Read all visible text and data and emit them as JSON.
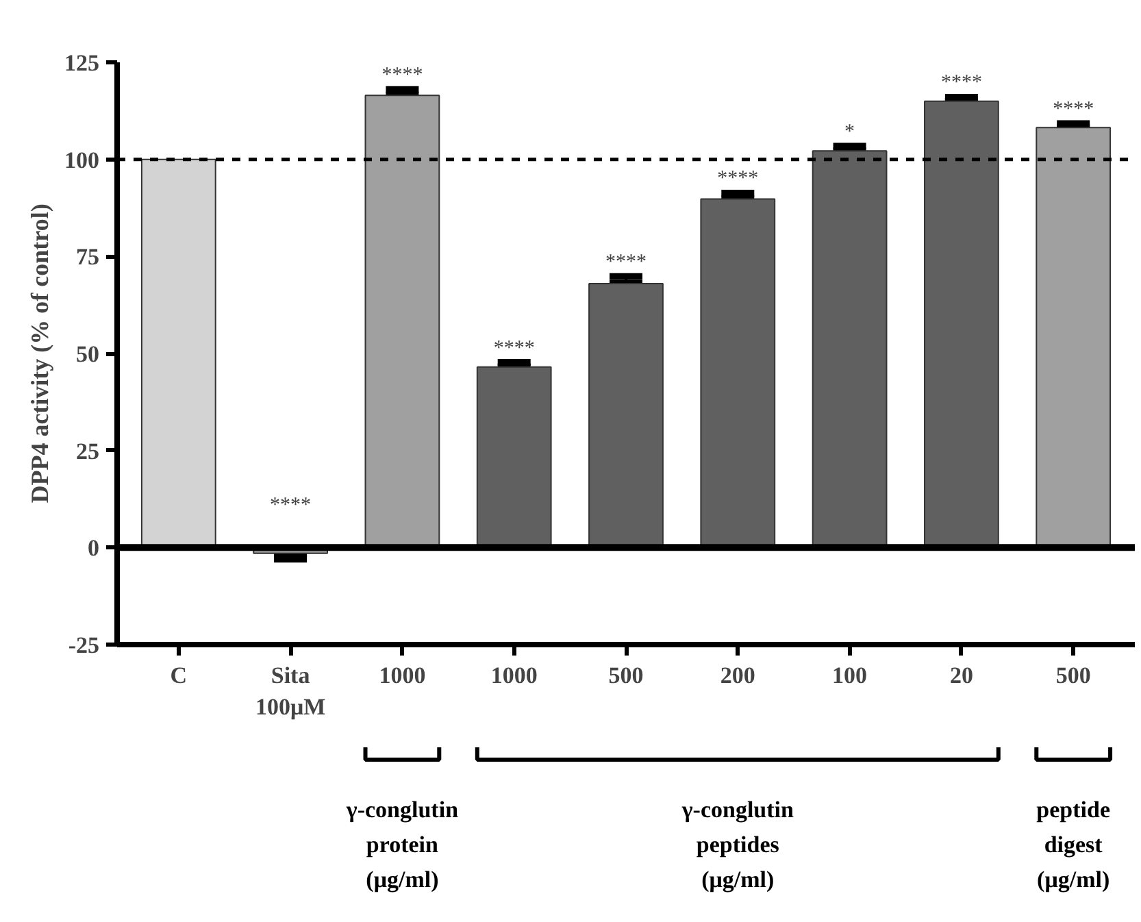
{
  "chart_data": {
    "type": "bar",
    "ylabel": "DPP4 activity (% of control)",
    "categories": [
      "C",
      "Sita\n100μM",
      "1000",
      "1000",
      "500",
      "200",
      "100",
      "20",
      "500"
    ],
    "values": [
      100,
      -1.5,
      116.5,
      46.5,
      68,
      89.8,
      102.2,
      115,
      108.2
    ],
    "errors": [
      null,
      1.5,
      1.5,
      1.2,
      1.8,
      1.5,
      1.2,
      1,
      1
    ],
    "value_labels": [
      null,
      "****",
      "****",
      "****",
      "****",
      "****",
      "*",
      "****",
      "****"
    ],
    "colors": [
      "#d3d3d3",
      "#9a9a9a",
      "#a0a0a0",
      "#606060",
      "#606060",
      "#606060",
      "#606060",
      "#606060",
      "#a0a0a0"
    ],
    "ylim": [
      -25,
      125
    ],
    "yticks": [
      -25,
      0,
      25,
      50,
      75,
      100,
      125
    ],
    "grid": false,
    "ref_lines": [
      {
        "axis": "y",
        "value": 100,
        "line_style": "dashed",
        "color": "#000000"
      },
      {
        "axis": "y",
        "value": 0,
        "line_style": "solid",
        "color": "#000000"
      }
    ],
    "annotations": [
      "γ-conglutin\nprotein\n(μg/ml)",
      "γ-conglutin\npeptides\n(μg/ml)",
      "peptide\ndigest\n(μg/ml)"
    ]
  }
}
